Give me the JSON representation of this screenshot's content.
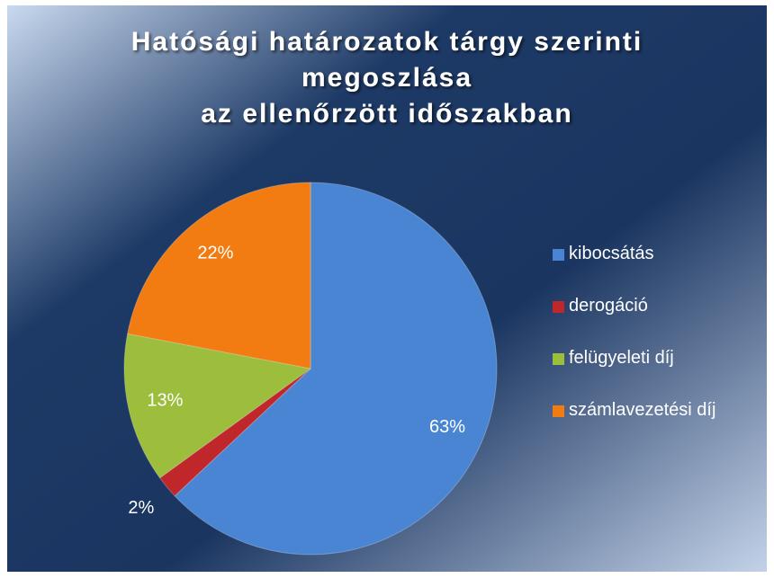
{
  "chart_data": {
    "type": "pie",
    "title": [
      "Hatósági határozatok tárgy szerinti",
      "megoszlása",
      "az ellenőrzött időszakban"
    ],
    "categories": [
      "kibocsátás",
      "derogáció",
      "felügyeleti díj",
      "számlavezetési díj"
    ],
    "values": [
      63,
      2,
      13,
      22
    ],
    "value_labels": [
      "63%",
      "2%",
      "13%",
      "22%"
    ],
    "colors": [
      "#4a85d3",
      "#c0272b",
      "#9dbd3c",
      "#f27c12"
    ],
    "legend": "right"
  }
}
